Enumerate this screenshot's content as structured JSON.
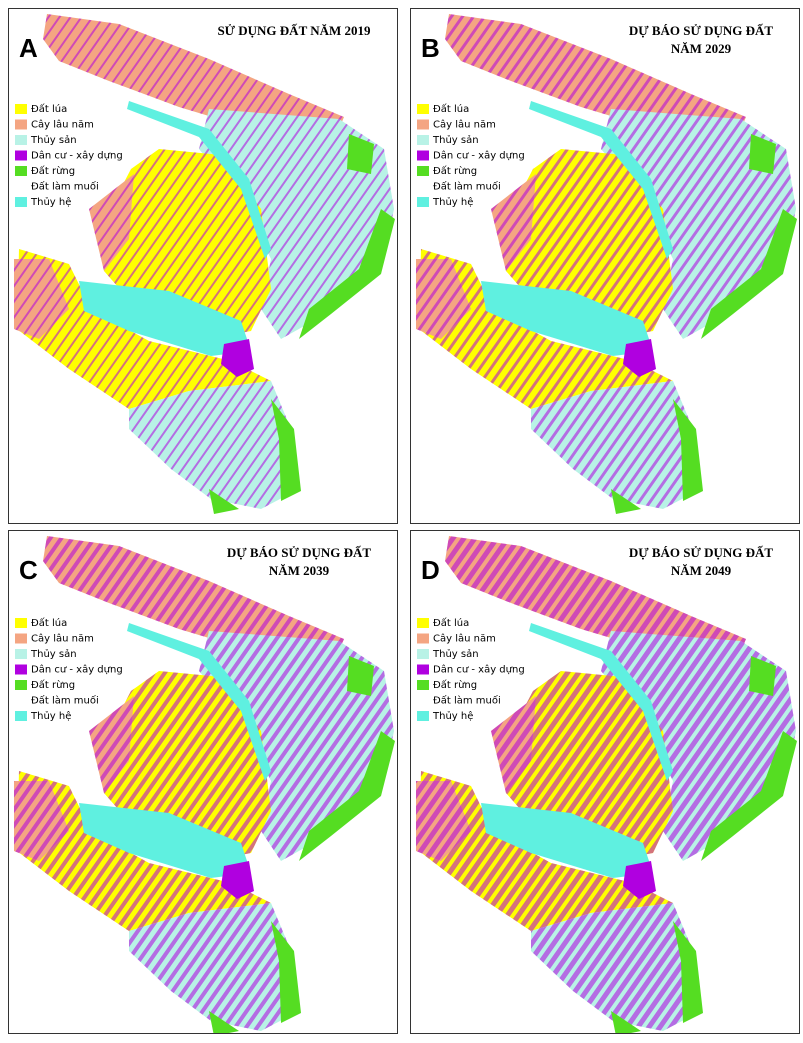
{
  "panels": [
    {
      "letter": "A",
      "title": [
        "SỬ DỤNG ĐẤT NĂM 2019"
      ]
    },
    {
      "letter": "B",
      "title": [
        "DỰ BÁO SỬ DỤNG ĐẤT",
        "NĂM 2029"
      ]
    },
    {
      "letter": "C",
      "title": [
        "DỰ BÁO SỬ DỤNG ĐẤT",
        "NĂM 2039"
      ]
    },
    {
      "letter": "D",
      "title": [
        "DỰ BÁO SỬ DỤNG ĐẤT",
        "NĂM 2049"
      ]
    }
  ],
  "legend": [
    {
      "label": "Đất lúa",
      "color": "#ffff00"
    },
    {
      "label": "Cây lâu năm",
      "color": "#f4a582"
    },
    {
      "label": "Thủy sản",
      "color": "#b8f2e6"
    },
    {
      "label": "Dân cư - xây dựng",
      "color": "#b000e0"
    },
    {
      "label": "Đất rừng",
      "color": "#55dd22"
    },
    {
      "label": "Đất làm muối",
      "color": "#ffffff"
    },
    {
      "label": "Thủy hệ",
      "color": "#5ff0e0"
    }
  ]
}
